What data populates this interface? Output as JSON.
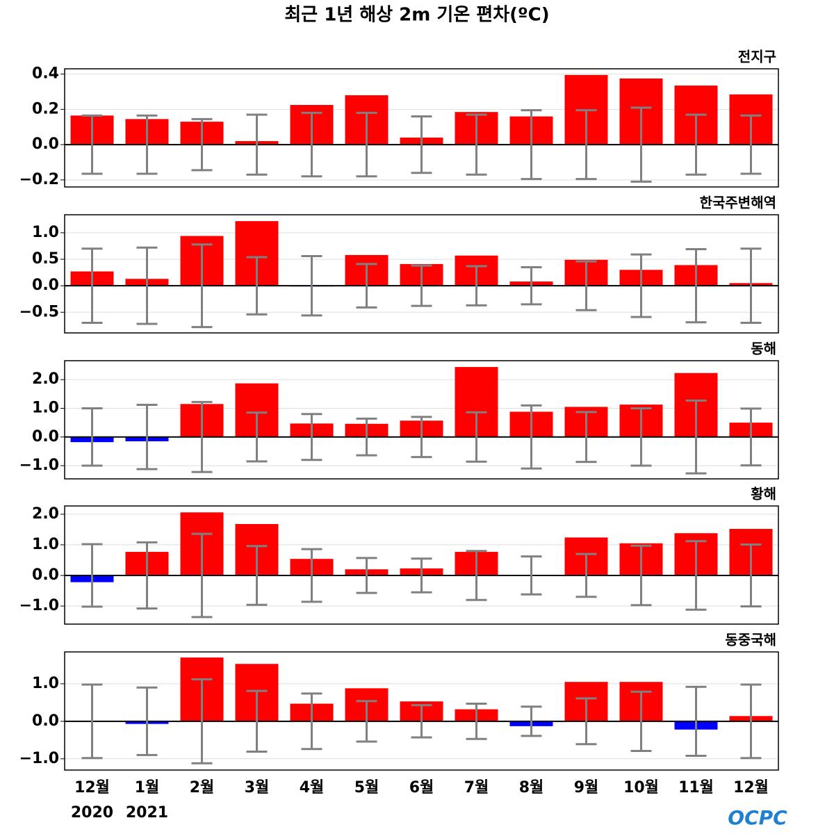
{
  "title": "최근 1년 해상 2m 기온 편차(ºC)",
  "logo": "OCPC",
  "chart_data": [
    {
      "type": "bar",
      "label": "전지구",
      "color_positive": "#ff0000",
      "color_negative": "#0000ff",
      "error_color": "#808080",
      "grid": true,
      "values": [
        0.165,
        0.145,
        0.13,
        0.02,
        0.225,
        0.28,
        0.04,
        0.185,
        0.16,
        0.395,
        0.375,
        0.335,
        0.285
      ],
      "errors": [
        0.165,
        0.165,
        0.145,
        0.17,
        0.18,
        0.18,
        0.16,
        0.17,
        0.195,
        0.195,
        0.21,
        0.17,
        0.165
      ],
      "ylim": [
        -0.24,
        0.43
      ],
      "yticks": [
        {
          "value": -0.2,
          "label": "−0.2"
        },
        {
          "value": 0,
          "label": "0.0"
        },
        0.2,
        0.4
      ]
    },
    {
      "type": "bar",
      "label": "한국주변해역",
      "color_positive": "#ff0000",
      "color_negative": "#0000ff",
      "error_color": "#808080",
      "grid": true,
      "values": [
        0.27,
        0.13,
        0.94,
        1.22,
        -0.01,
        0.58,
        0.41,
        0.57,
        0.08,
        0.49,
        0.3,
        0.39,
        0.05
      ],
      "errors": [
        0.7,
        0.72,
        0.78,
        0.54,
        0.56,
        0.41,
        0.38,
        0.37,
        0.35,
        0.46,
        0.59,
        0.69,
        0.7
      ],
      "ylim": [
        -0.89,
        1.34
      ],
      "yticks": [
        {
          "value": -0.5,
          "label": "−0.5"
        },
        {
          "value": 0,
          "label": "0.0"
        },
        0.5,
        {
          "value": 1,
          "label": "1.0"
        }
      ]
    },
    {
      "type": "bar",
      "label": "동해",
      "color_positive": "#ff0000",
      "color_negative": "#0000ff",
      "error_color": "#808080",
      "grid": true,
      "values": [
        -0.18,
        -0.15,
        1.15,
        1.87,
        0.47,
        0.46,
        0.57,
        2.44,
        0.88,
        1.05,
        1.13,
        2.23,
        0.5
      ],
      "errors": [
        1.0,
        1.12,
        1.22,
        0.85,
        0.8,
        0.64,
        0.7,
        0.86,
        1.1,
        0.87,
        1.0,
        1.27,
        0.99
      ],
      "ylim": [
        -1.46,
        2.66
      ],
      "yticks": [
        {
          "value": -1,
          "label": "−1.0"
        },
        {
          "value": 0,
          "label": "0.0"
        },
        {
          "value": 1,
          "label": "1.0"
        },
        {
          "value": 2,
          "label": "2.0"
        }
      ]
    },
    {
      "type": "bar",
      "label": "황해",
      "color_positive": "#ff0000",
      "color_negative": "#0000ff",
      "error_color": "#808080",
      "grid": true,
      "values": [
        -0.22,
        0.77,
        2.06,
        1.68,
        0.54,
        0.2,
        0.23,
        0.77,
        0.02,
        1.24,
        1.05,
        1.38,
        1.52
      ],
      "errors": [
        1.02,
        1.08,
        1.36,
        0.96,
        0.86,
        0.57,
        0.55,
        0.8,
        0.62,
        0.7,
        0.97,
        1.12,
        1.01
      ],
      "ylim": [
        -1.59,
        2.27
      ],
      "yticks": [
        {
          "value": -1,
          "label": "−1.0"
        },
        {
          "value": 0,
          "label": "0.0"
        },
        {
          "value": 1,
          "label": "1.0"
        },
        {
          "value": 2,
          "label": "2.0"
        }
      ]
    },
    {
      "type": "bar",
      "label": "동중국해",
      "color_positive": "#ff0000",
      "color_negative": "#0000ff",
      "error_color": "#808080",
      "grid": true,
      "categories": [
        "12월",
        "1월",
        "2월",
        "3월",
        "4월",
        "5월",
        "6월",
        "7월",
        "8월",
        "9월",
        "10월",
        "11월",
        "12월"
      ],
      "year_labels": [
        "2020",
        "2021"
      ],
      "values": [
        0.01,
        -0.07,
        1.7,
        1.53,
        0.47,
        0.88,
        0.53,
        0.32,
        -0.13,
        1.05,
        1.05,
        -0.22,
        0.14
      ],
      "errors": [
        0.98,
        0.9,
        1.12,
        0.81,
        0.74,
        0.54,
        0.43,
        0.47,
        0.39,
        0.61,
        0.79,
        0.92,
        0.98
      ],
      "ylim": [
        -1.3,
        1.85
      ],
      "yticks": [
        {
          "value": -1,
          "label": "−1.0"
        },
        {
          "value": 0,
          "label": "0.0"
        },
        {
          "value": 1,
          "label": "1.0"
        }
      ]
    }
  ]
}
